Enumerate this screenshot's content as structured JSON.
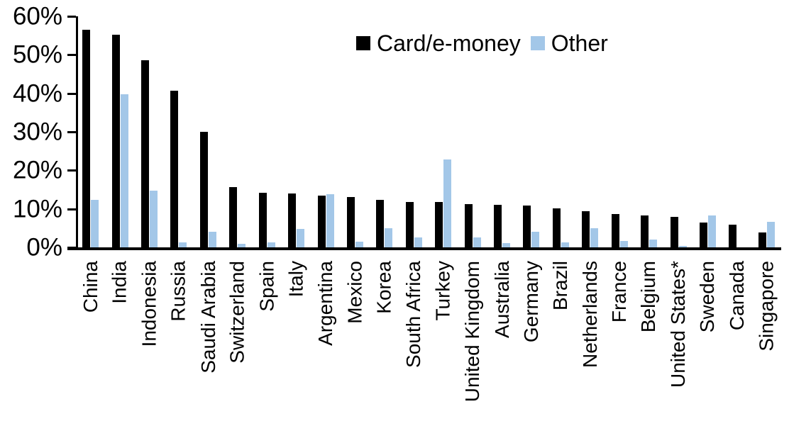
{
  "chart_data": {
    "type": "bar",
    "title": "",
    "xlabel": "",
    "ylabel": "",
    "ylim": [
      0,
      60
    ],
    "grid": false,
    "legend_position": "top-center",
    "y_ticks": [
      {
        "label": "0%",
        "value": 0
      },
      {
        "label": "10%",
        "value": 10
      },
      {
        "label": "20%",
        "value": 20
      },
      {
        "label": "30%",
        "value": 30
      },
      {
        "label": "40%",
        "value": 40
      },
      {
        "label": "50%",
        "value": 50
      },
      {
        "label": "60%",
        "value": 60
      }
    ],
    "categories": [
      "China",
      "India",
      "Indonesia",
      "Russia",
      "Saudi Arabia",
      "Switzerland",
      "Spain",
      "Italy",
      "Argentina",
      "Mexico",
      "Korea",
      "South Africa",
      "Turkey",
      "United Kingdom",
      "Australia",
      "Germany",
      "Brazil",
      "Netherlands",
      "France",
      "Belgium",
      "United States*",
      "Sweden",
      "Canada",
      "Singapore"
    ],
    "series": [
      {
        "name": "Card/e-money",
        "color": "#000000",
        "values": [
          56.5,
          55.3,
          48.5,
          40.6,
          30.0,
          15.7,
          14.2,
          14.0,
          13.5,
          13.0,
          12.3,
          11.8,
          11.8,
          11.3,
          11.0,
          10.8,
          10.1,
          9.3,
          8.7,
          8.2,
          7.9,
          6.5,
          5.9,
          3.8
        ]
      },
      {
        "name": "Other",
        "color": "#A3C7E8",
        "values": [
          12.4,
          39.8,
          14.7,
          1.2,
          4.0,
          1.0,
          1.2,
          4.8,
          13.8,
          1.5,
          4.9,
          2.5,
          22.8,
          2.5,
          1.1,
          4.0,
          1.2,
          5.0,
          1.7,
          2.1,
          0.4,
          8.2,
          0,
          6.7
        ]
      }
    ]
  }
}
